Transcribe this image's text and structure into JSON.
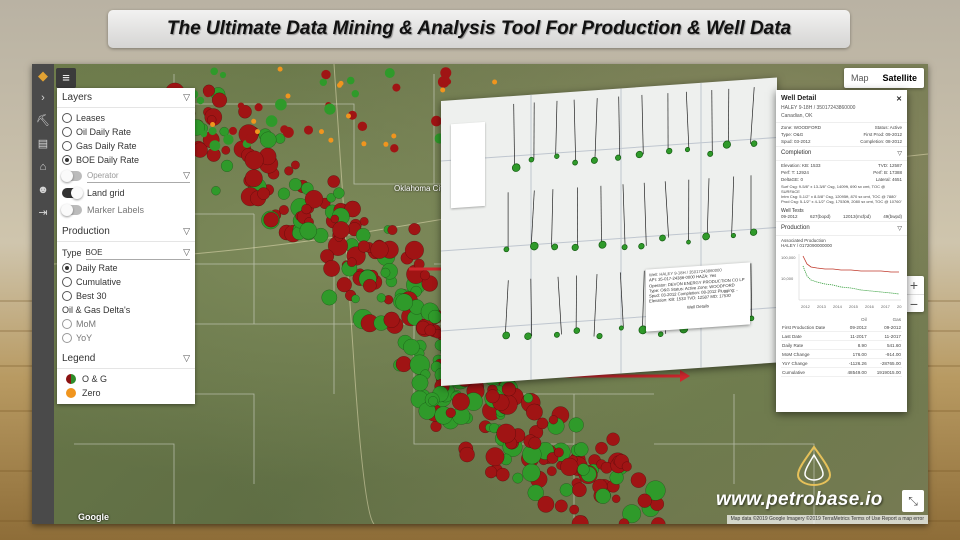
{
  "headline": "The Ultimate Data Mining & Analysis Tool For Production & Well Data",
  "brand": {
    "url": "www.petrobase.io"
  },
  "left_rail": {
    "icons": [
      "petrobase-logo-icon",
      "chevron-right-icon",
      "well-icon",
      "pipeline-icon",
      "building-icon",
      "people-icon",
      "logout-icon"
    ]
  },
  "map": {
    "type_toggle": [
      "Map",
      "Satellite"
    ],
    "active_type": "Satellite",
    "city_label": "Oklahoma City",
    "google": "Google",
    "attribution": "Map data ©2019 Google Imagery ©2019 TerraMetrics   Terms of Use   Report a map error",
    "zoom_in": "+",
    "zoom_out": "−"
  },
  "layers": {
    "title": "Layers",
    "options": [
      "Leases",
      "Oil Daily Rate",
      "Gas Daily Rate",
      "BOE Daily Rate"
    ],
    "selected": "BOE Daily Rate",
    "operator_placeholder": "Operator",
    "land_grid_label": "Land grid",
    "marker_labels_label": "Marker Labels"
  },
  "production": {
    "title": "Production",
    "type_label": "Type",
    "type_value": "BOE",
    "options": [
      "Daily Rate",
      "Cumulative",
      "Best 30"
    ],
    "selected": "Daily Rate",
    "deltas_label": "Oil & Gas Delta's",
    "delta_options": [
      "MoM",
      "YoY"
    ]
  },
  "legend": {
    "title": "Legend",
    "items": [
      {
        "label": "O  &  G",
        "color": "#2f8c2a"
      },
      {
        "label": "Zero",
        "color": "#f0951e"
      }
    ]
  },
  "overlay": {
    "tooltip_lines": [
      "Well: HALEY 9-18H / 35017243860000",
      "API: 35-017-24386-0000   HAZA: Yes",
      "Operator: DEVON ENERGY PRODUCTION CO LP",
      "Type: O&G   Status: Active   Zone: WOODFORD",
      "Spud: 03-2012   Completion: 08-2012   Plugging: -",
      "Elevation: KB: 1533   TVD: 12587   MD: 17530"
    ],
    "tooltip_footer": "Well   Details"
  },
  "well_detail": {
    "title": "Well Detail",
    "well_name": "HALEY 9-18H / 35017243860000",
    "county": "Canadian, OK",
    "rows": [
      [
        "Zone: WOODFORD",
        "Status: Active"
      ],
      [
        "Type: O&G",
        "First Prod: 09-2012"
      ],
      [
        "Spud: 03-2012",
        "Completion: 08-2012"
      ]
    ],
    "completion_title": "Completion",
    "completion_rows": [
      [
        "Elevation: KB: 1533",
        "TVD: 12587"
      ],
      [
        "Perf: T: 12924",
        "Perf: B: 17388"
      ],
      [
        "DeltaGE: 0",
        "Lateral: 4651"
      ]
    ],
    "casing_lines": [
      "Surf Csg: 9-5/8\" x 13-3/8\" Csg, 1409ft, 690 sx cmt, TOC @ SURFACE",
      "Intm Csg: 5-1/2\" x 8-5/8\" Csg, 12095ft, 870 sx cmt, TOC @ 7880'",
      "Prod Csg: 5-1/2\" x 4-1/2\" Csg, 17530ft, 2080 sx cmt, TOC @ 10760'"
    ],
    "well_tests_title": "Well Tests",
    "well_tests": [
      "09-2012",
      "627(bopd)",
      "12013(mcfpd)",
      "49(bwpd)"
    ],
    "production_title": "Production",
    "associated_production": "Associated Production",
    "production_ref": "HALEY / 0172090000000",
    "chart_axis_left": [
      "100,000",
      "10,000"
    ],
    "chart_axis_bottom": [
      "2012",
      "2013",
      "2014",
      "2015",
      "2016",
      "2017",
      "2018"
    ],
    "table_headers": [
      "",
      "Oil",
      "Gas"
    ],
    "table": [
      [
        "First Production Date",
        "09-2012",
        "09-2012"
      ],
      [
        "Last Date",
        "11-2017",
        "11-2017"
      ],
      [
        "Daily Rate",
        "8.90",
        "541.60"
      ],
      [
        "MoM Change",
        "176.00",
        "-914.00"
      ],
      [
        "YoY Change",
        "-1126.26",
        "-28765.00"
      ],
      [
        "Cumulative",
        "48549.00",
        "1919015.00"
      ]
    ]
  }
}
